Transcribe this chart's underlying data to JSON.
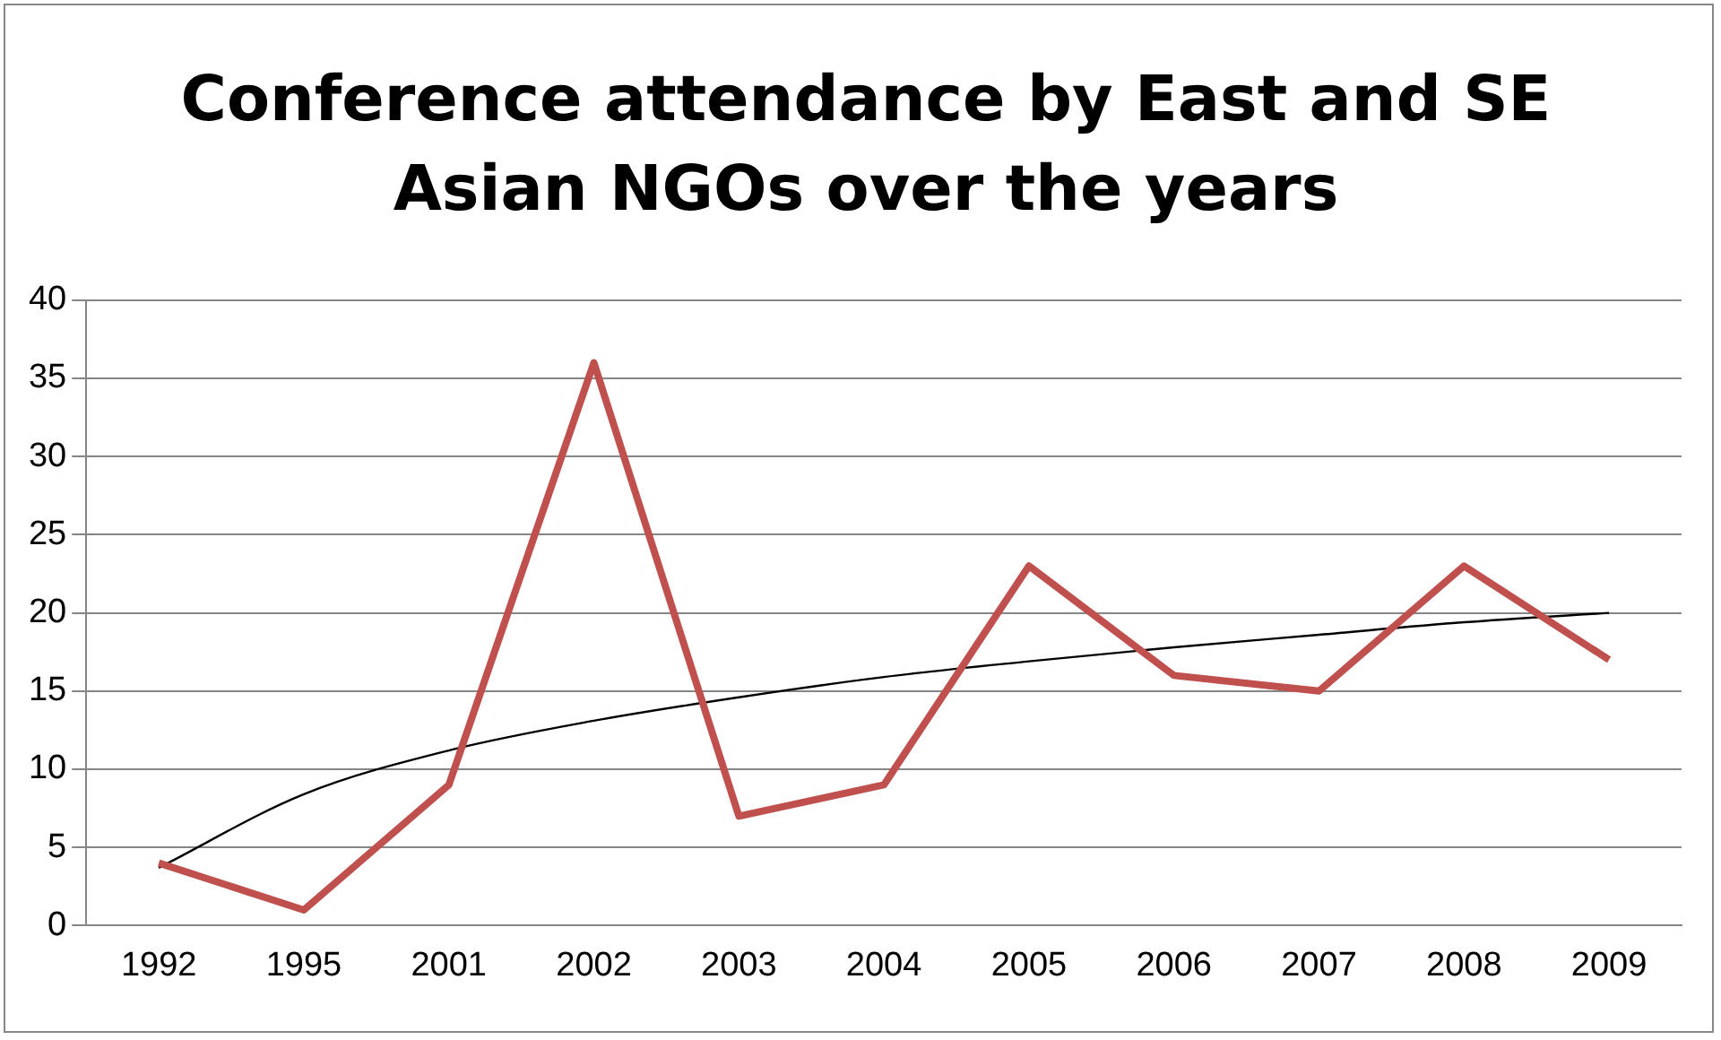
{
  "chart_data": {
    "type": "line",
    "title": "Conference attendance by East and SE Asian NGOs over the years",
    "categories": [
      "1992",
      "1995",
      "2001",
      "2002",
      "2003",
      "2004",
      "2005",
      "2006",
      "2007",
      "2008",
      "2009"
    ],
    "series": [
      {
        "color": "#c0504d",
        "values": [
          4,
          1,
          9,
          36,
          7,
          9,
          23,
          16,
          15,
          23,
          17
        ]
      },
      {
        "color": "#000000",
        "values": [
          3.7,
          8.4,
          11.2,
          13.1,
          14.6,
          15.9,
          16.9,
          17.8,
          18.6,
          19.4,
          20.0
        ]
      }
    ],
    "ylim": [
      0,
      40
    ],
    "yticks": [
      0,
      5,
      10,
      15,
      20,
      25,
      30,
      35,
      40
    ],
    "grid": "y",
    "legend": false,
    "marker": "none",
    "line_style": "solid"
  }
}
